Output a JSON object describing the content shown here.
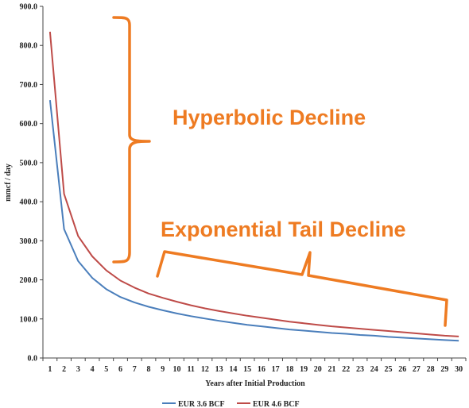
{
  "chart_data": {
    "type": "line",
    "title": "",
    "xlabel": "Years after Initial Production",
    "ylabel": "mmcf / day",
    "x": [
      1,
      2,
      3,
      4,
      5,
      6,
      7,
      8,
      9,
      10,
      11,
      12,
      13,
      14,
      15,
      16,
      17,
      18,
      19,
      20,
      21,
      22,
      23,
      24,
      25,
      26,
      27,
      28,
      29,
      30
    ],
    "xticks": [
      "1",
      "2",
      "3",
      "4",
      "5",
      "6",
      "7",
      "8",
      "9",
      "10",
      "11",
      "12",
      "13",
      "14",
      "15",
      "16",
      "17",
      "18",
      "19",
      "20",
      "21",
      "22",
      "23",
      "24",
      "25",
      "26",
      "27",
      "28",
      "29",
      "30"
    ],
    "yticks": [
      "0.0",
      "100.0",
      "200.0",
      "300.0",
      "400.0",
      "500.0",
      "600.0",
      "700.0",
      "800.0",
      "900.0"
    ],
    "ylim": [
      0,
      900
    ],
    "grid": false,
    "legend_position": "bottom",
    "series": [
      {
        "name": "EUR 3.6 BCF",
        "color": "#4a7ebb",
        "values": [
          660,
          330,
          248,
          205,
          176,
          156,
          142,
          131,
          122,
          114,
          107,
          101,
          95,
          90,
          85,
          81,
          77,
          73,
          70,
          67,
          64,
          62,
          59,
          57,
          54,
          52,
          50,
          48,
          46,
          44
        ]
      },
      {
        "name": "EUR 4.6 BCF",
        "color": "#be4b48",
        "values": [
          835,
          420,
          312,
          260,
          224,
          198,
          180,
          165,
          154,
          144,
          135,
          127,
          120,
          114,
          108,
          103,
          98,
          93,
          89,
          85,
          81,
          78,
          75,
          72,
          69,
          66,
          63,
          60,
          57,
          55
        ]
      }
    ],
    "annotations": [
      {
        "text": "Hyperbolic Decline",
        "color": "#ee7b22"
      },
      {
        "text": "Exponential Tail Decline",
        "color": "#ee7b22"
      }
    ]
  }
}
